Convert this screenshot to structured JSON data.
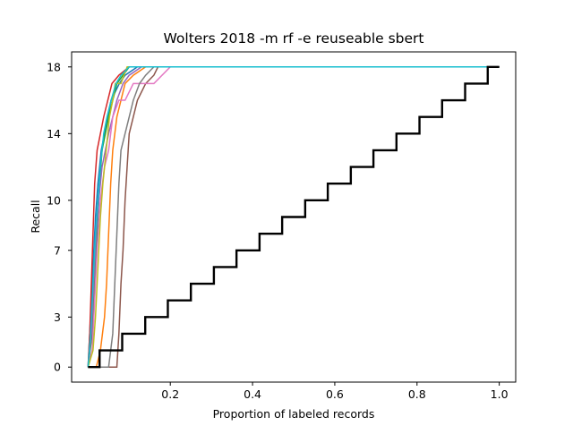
{
  "chart_data": {
    "type": "line",
    "title": "Wolters 2018 -m rf -e reuseable sbert",
    "xlabel": "Proportion of labeled records",
    "ylabel": "Recall",
    "xlim": [
      -0.04,
      1.04
    ],
    "ylim": [
      -0.9,
      18.9
    ],
    "x_ticks": [
      0.2,
      0.4,
      0.6,
      0.8,
      1.0
    ],
    "x_tick_labels": [
      "0.2",
      "0.4",
      "0.6",
      "0.8",
      "1.0"
    ],
    "y_ticks": [
      0,
      3,
      7,
      10,
      14,
      18
    ],
    "y_tick_labels": [
      "0",
      "3",
      "7",
      "10",
      "14",
      "18"
    ],
    "grid": false,
    "legend": "none",
    "series": [
      {
        "color": "#1f77b4",
        "points": [
          [
            0.0,
            0
          ],
          [
            0.006,
            3
          ],
          [
            0.012,
            6
          ],
          [
            0.018,
            9
          ],
          [
            0.024,
            11
          ],
          [
            0.032,
            13
          ],
          [
            0.04,
            14
          ],
          [
            0.048,
            15
          ],
          [
            0.056,
            16
          ],
          [
            0.066,
            16.5
          ],
          [
            0.076,
            17
          ],
          [
            0.09,
            17.5
          ],
          [
            0.12,
            18
          ],
          [
            1.0,
            18
          ]
        ]
      },
      {
        "color": "#ff7f0e",
        "points": [
          [
            0.0,
            0
          ],
          [
            0.02,
            0
          ],
          [
            0.03,
            1
          ],
          [
            0.04,
            3
          ],
          [
            0.045,
            5
          ],
          [
            0.05,
            8
          ],
          [
            0.055,
            11
          ],
          [
            0.06,
            13
          ],
          [
            0.07,
            15
          ],
          [
            0.08,
            16
          ],
          [
            0.09,
            17
          ],
          [
            0.11,
            17.5
          ],
          [
            0.14,
            18
          ],
          [
            1.0,
            18
          ]
        ]
      },
      {
        "color": "#2ca02c",
        "points": [
          [
            0.0,
            0
          ],
          [
            0.01,
            2
          ],
          [
            0.016,
            5
          ],
          [
            0.022,
            8
          ],
          [
            0.028,
            11
          ],
          [
            0.034,
            13
          ],
          [
            0.042,
            14
          ],
          [
            0.05,
            15
          ],
          [
            0.06,
            16
          ],
          [
            0.07,
            17
          ],
          [
            0.085,
            17.5
          ],
          [
            0.1,
            18
          ],
          [
            1.0,
            18
          ]
        ]
      },
      {
        "color": "#d62728",
        "points": [
          [
            0.0,
            0
          ],
          [
            0.004,
            2
          ],
          [
            0.008,
            5
          ],
          [
            0.012,
            8
          ],
          [
            0.016,
            11
          ],
          [
            0.022,
            13
          ],
          [
            0.03,
            14
          ],
          [
            0.038,
            15
          ],
          [
            0.048,
            16
          ],
          [
            0.058,
            17
          ],
          [
            0.075,
            17.5
          ],
          [
            0.1,
            18
          ],
          [
            1.0,
            18
          ]
        ]
      },
      {
        "color": "#9467bd",
        "points": [
          [
            0.0,
            0
          ],
          [
            0.008,
            2
          ],
          [
            0.014,
            5
          ],
          [
            0.02,
            8
          ],
          [
            0.026,
            10
          ],
          [
            0.034,
            12
          ],
          [
            0.042,
            13
          ],
          [
            0.05,
            14
          ],
          [
            0.06,
            15
          ],
          [
            0.07,
            16
          ],
          [
            0.085,
            17
          ],
          [
            0.1,
            17.5
          ],
          [
            0.13,
            18
          ],
          [
            1.0,
            18
          ]
        ]
      },
      {
        "color": "#8c564b",
        "points": [
          [
            0.0,
            0
          ],
          [
            0.07,
            0
          ],
          [
            0.075,
            2
          ],
          [
            0.08,
            5
          ],
          [
            0.085,
            7
          ],
          [
            0.09,
            10
          ],
          [
            0.095,
            12
          ],
          [
            0.1,
            14
          ],
          [
            0.11,
            15
          ],
          [
            0.12,
            16
          ],
          [
            0.14,
            17
          ],
          [
            0.16,
            17.5
          ],
          [
            0.17,
            18
          ],
          [
            1.0,
            18
          ]
        ]
      },
      {
        "color": "#e377c2",
        "points": [
          [
            0.0,
            0
          ],
          [
            0.01,
            1
          ],
          [
            0.016,
            4
          ],
          [
            0.022,
            7
          ],
          [
            0.03,
            10
          ],
          [
            0.04,
            12
          ],
          [
            0.05,
            13
          ],
          [
            0.06,
            15
          ],
          [
            0.075,
            16
          ],
          [
            0.09,
            16
          ],
          [
            0.11,
            17
          ],
          [
            0.16,
            17
          ],
          [
            0.2,
            18
          ],
          [
            1.0,
            18
          ]
        ]
      },
      {
        "color": "#7f7f7f",
        "points": [
          [
            0.0,
            0
          ],
          [
            0.02,
            0
          ],
          [
            0.05,
            0
          ],
          [
            0.06,
            2
          ],
          [
            0.065,
            5
          ],
          [
            0.07,
            8
          ],
          [
            0.075,
            11
          ],
          [
            0.08,
            13
          ],
          [
            0.09,
            14
          ],
          [
            0.1,
            15
          ],
          [
            0.11,
            16
          ],
          [
            0.125,
            17
          ],
          [
            0.14,
            17.5
          ],
          [
            0.16,
            18
          ],
          [
            1.0,
            18
          ]
        ]
      },
      {
        "color": "#bcbd22",
        "points": [
          [
            0.0,
            0
          ],
          [
            0.012,
            1
          ],
          [
            0.018,
            3
          ],
          [
            0.024,
            6
          ],
          [
            0.03,
            9
          ],
          [
            0.036,
            11
          ],
          [
            0.044,
            13
          ],
          [
            0.052,
            15
          ],
          [
            0.06,
            16
          ],
          [
            0.066,
            17
          ],
          [
            0.08,
            17
          ],
          [
            0.095,
            18
          ],
          [
            1.0,
            18
          ]
        ]
      },
      {
        "color": "#17becf",
        "points": [
          [
            0.0,
            0
          ],
          [
            0.006,
            2
          ],
          [
            0.012,
            5
          ],
          [
            0.018,
            8
          ],
          [
            0.024,
            10
          ],
          [
            0.03,
            12
          ],
          [
            0.038,
            14
          ],
          [
            0.046,
            15
          ],
          [
            0.056,
            16
          ],
          [
            0.068,
            17
          ],
          [
            0.08,
            17.5
          ],
          [
            0.1,
            18
          ],
          [
            1.0,
            18
          ]
        ]
      },
      {
        "color": "#000000",
        "points": [
          [
            0.0,
            0
          ],
          [
            0.028,
            0
          ],
          [
            0.028,
            1
          ],
          [
            0.083,
            1
          ],
          [
            0.083,
            2
          ],
          [
            0.139,
            2
          ],
          [
            0.139,
            3
          ],
          [
            0.194,
            3
          ],
          [
            0.194,
            4
          ],
          [
            0.25,
            4
          ],
          [
            0.25,
            5
          ],
          [
            0.306,
            5
          ],
          [
            0.306,
            6
          ],
          [
            0.361,
            6
          ],
          [
            0.361,
            7
          ],
          [
            0.417,
            7
          ],
          [
            0.417,
            8
          ],
          [
            0.472,
            8
          ],
          [
            0.472,
            9
          ],
          [
            0.528,
            9
          ],
          [
            0.528,
            10
          ],
          [
            0.583,
            10
          ],
          [
            0.583,
            11
          ],
          [
            0.639,
            11
          ],
          [
            0.639,
            12
          ],
          [
            0.694,
            12
          ],
          [
            0.694,
            13
          ],
          [
            0.75,
            13
          ],
          [
            0.75,
            14
          ],
          [
            0.806,
            14
          ],
          [
            0.806,
            15
          ],
          [
            0.861,
            15
          ],
          [
            0.861,
            16
          ],
          [
            0.917,
            16
          ],
          [
            0.917,
            17
          ],
          [
            0.972,
            17
          ],
          [
            0.972,
            18
          ],
          [
            1.0,
            18
          ]
        ]
      }
    ]
  }
}
